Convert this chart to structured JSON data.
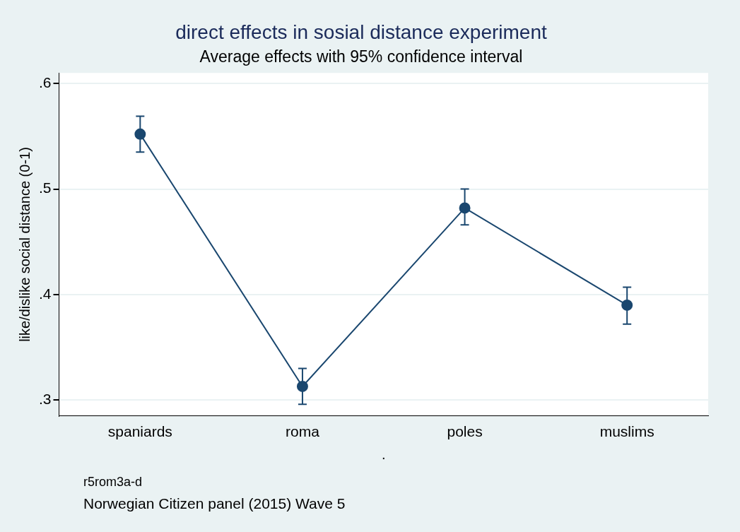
{
  "chart_data": {
    "type": "line",
    "title": "direct effects in sosial distance experiment",
    "subtitle": "Average effects with 95% confidence interval",
    "xlabel": ".",
    "ylabel": "like/dislike social distance (0-1)",
    "categories": [
      "spaniards",
      "roma",
      "poles",
      "muslims"
    ],
    "series": [
      {
        "color": "#1a476f",
        "values": [
          0.552,
          0.313,
          0.482,
          0.39
        ],
        "errors": [
          [
            0.535,
            0.569
          ],
          [
            0.296,
            0.33
          ],
          [
            0.466,
            0.5
          ],
          [
            0.372,
            0.407
          ]
        ]
      }
    ],
    "ylim": [
      0.285,
      0.61
    ],
    "yticks": [
      {
        "value": 0.3,
        "label": ".3"
      },
      {
        "value": 0.4,
        "label": ".4"
      },
      {
        "value": 0.5,
        "label": ".5"
      },
      {
        "value": 0.6,
        "label": ".6"
      }
    ],
    "grid": "y",
    "legend": false,
    "marker": "circle",
    "line_style": "solid",
    "annotations": [
      "r5rom3a-d",
      "Norwegian Citizen panel (2015) Wave 5"
    ]
  }
}
